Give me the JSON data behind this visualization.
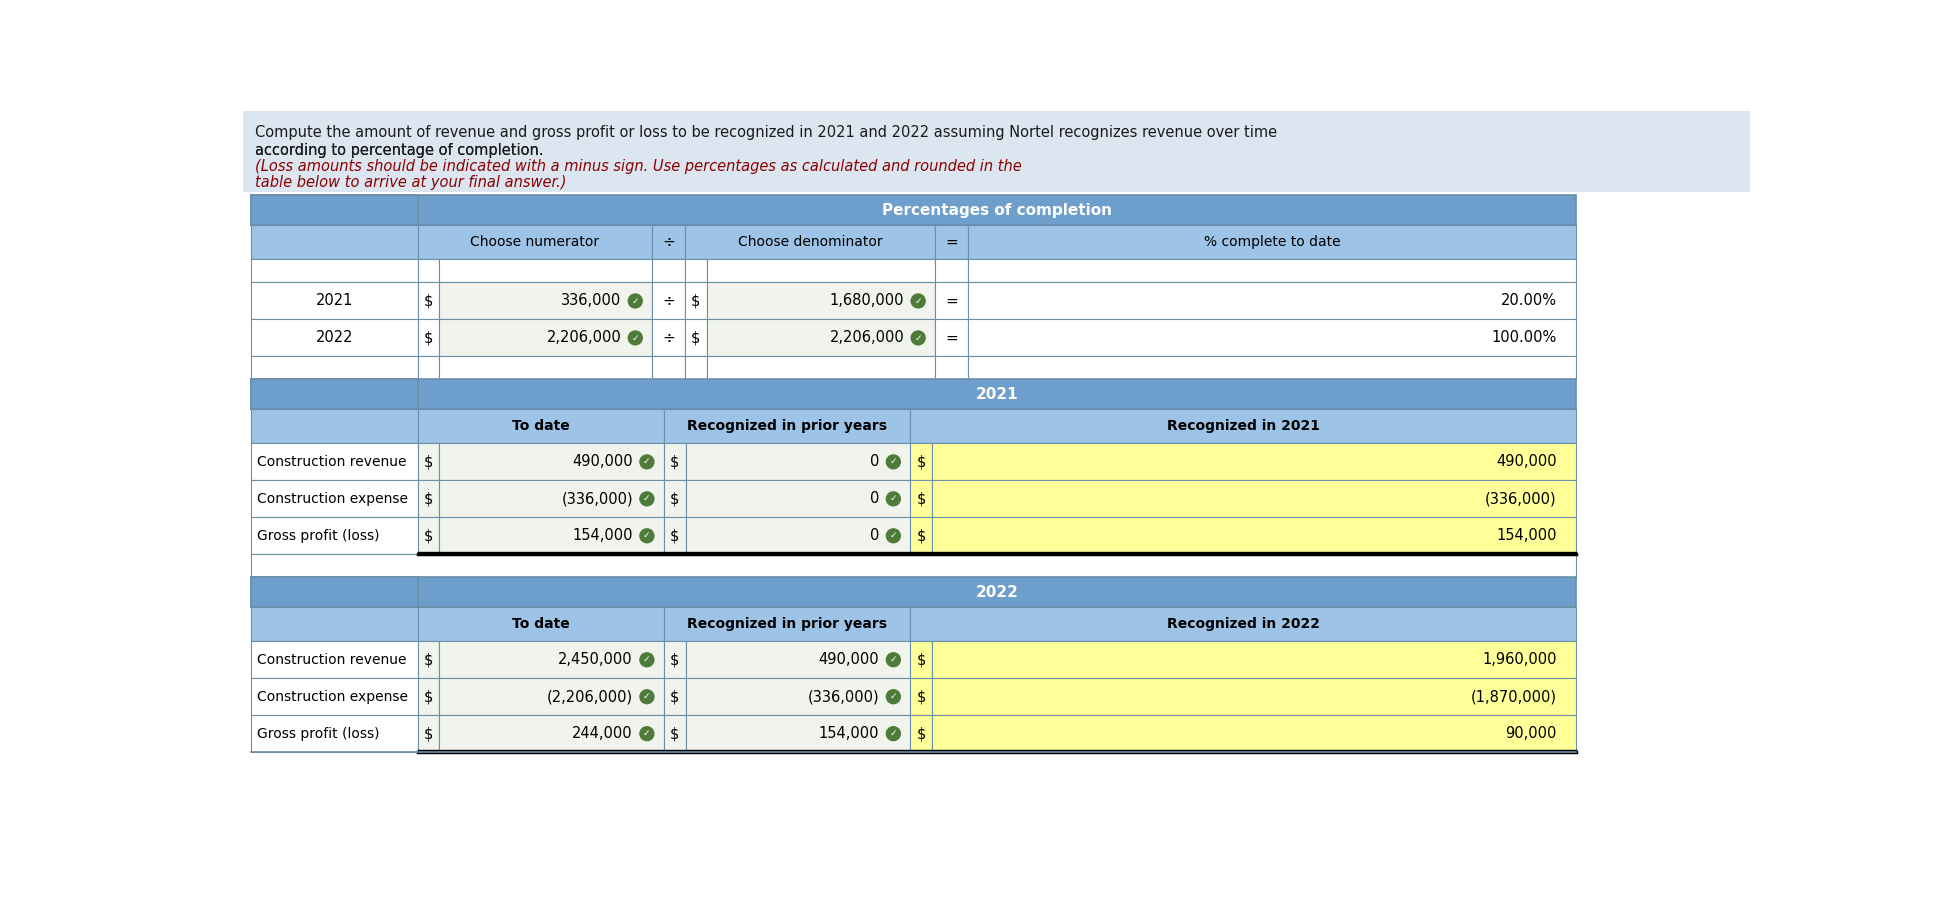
{
  "header_bg": "#dce6f1",
  "header_text_normal": "Compute the amount of revenue and gross profit or loss to be recognized in 2021 and 2022 assuming Nortel recognizes revenue over time\naccording to percentage of completion.",
  "header_text_italic": "(Loss amounts should be indicated with a minus sign. Use percentages as calculated and rounded in the\ntable below to arrive at your final answer.)",
  "italic_color": "#8b0000",
  "section_header_bg": "#6d9ecc",
  "col_header_bg": "#9dc3e6",
  "data_bg": "#ffffff",
  "data_num_bg": "#f0f4ec",
  "gross_profit_bg": "#ffff99",
  "recognized_bg": "#ffff99",
  "border_color": "#6b8fa8",
  "check_color": "#4e7a3a",
  "section1_title": "Percentages of completion",
  "section1_col1": "Choose numerator",
  "section1_div": "÷",
  "section1_col2": "Choose denominator",
  "section1_eq": "=",
  "section1_col3": "% complete to date",
  "rows_pct": [
    {
      "year": "2021",
      "num": "336,000",
      "denom": "1,680,000",
      "pct": "20.00%"
    },
    {
      "year": "2022",
      "num": "2,206,000",
      "denom": "2,206,000",
      "pct": "100.00%"
    }
  ],
  "section2_title": "2021",
  "section2_col1": "To date",
  "section2_col2": "Recognized in prior years",
  "section2_col3": "Recognized in 2021",
  "rows_2021": [
    {
      "label": "Construction revenue",
      "todate": "490,000",
      "prior": "0",
      "recognized": "490,000",
      "gp": false
    },
    {
      "label": "Construction expense",
      "todate": "(336,000)",
      "prior": "0",
      "recognized": "(336,000)",
      "gp": false
    },
    {
      "label": "Gross profit (loss)",
      "todate": "154,000",
      "prior": "0",
      "recognized": "154,000",
      "gp": true
    }
  ],
  "section3_title": "2022",
  "section3_col1": "To date",
  "section3_col2": "Recognized in prior years",
  "section3_col3": "Recognized in 2022",
  "rows_2022": [
    {
      "label": "Construction revenue",
      "todate": "2,450,000",
      "prior": "490,000",
      "recognized": "1,960,000",
      "gp": false
    },
    {
      "label": "Construction expense",
      "todate": "(2,206,000)",
      "prior": "(336,000)",
      "recognized": "(1,870,000)",
      "gp": false
    },
    {
      "label": "Gross profit (loss)",
      "todate": "244,000",
      "prior": "154,000",
      "recognized": "90,000",
      "gp": true
    }
  ]
}
